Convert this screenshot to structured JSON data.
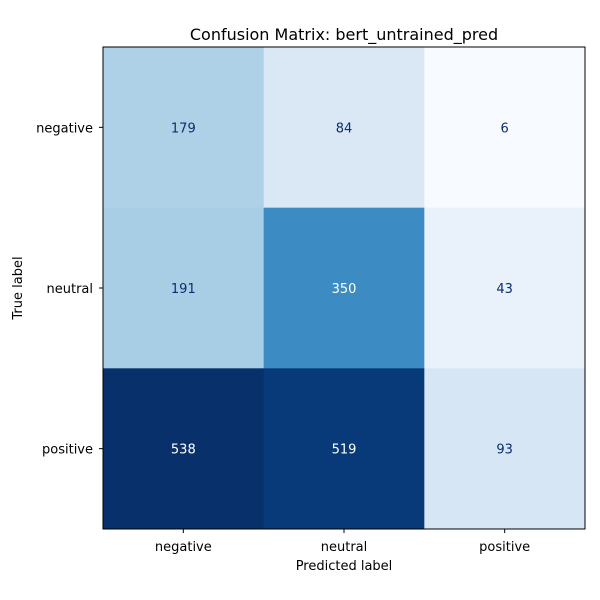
{
  "chart_data": {
    "type": "heatmap",
    "title": "Confusion Matrix: bert_untrained_pred",
    "xlabel": "Predicted label",
    "ylabel": "True label",
    "x_categories": [
      "negative",
      "neutral",
      "positive"
    ],
    "y_categories": [
      "negative",
      "neutral",
      "positive"
    ],
    "values": [
      [
        179,
        84,
        6
      ],
      [
        191,
        350,
        43
      ],
      [
        538,
        519,
        93
      ]
    ],
    "colormap": "Blues",
    "value_range": [
      6,
      538
    ],
    "colorbar": false
  }
}
